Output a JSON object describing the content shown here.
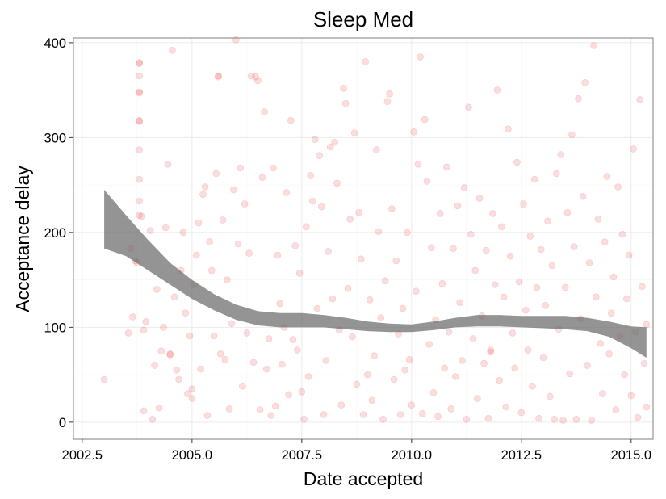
{
  "chart_data": {
    "type": "scatter",
    "title": "Sleep Med",
    "xlabel": "Date accepted",
    "ylabel": "Acceptance delay",
    "xlim": [
      2002.3,
      2015.5
    ],
    "ylim": [
      -18,
      405
    ],
    "x_ticks": [
      2002.5,
      2005.0,
      2007.5,
      2010.0,
      2012.5,
      2015.0
    ],
    "x_tick_labels": [
      "2002.5",
      "2005.0",
      "2007.5",
      "2010.0",
      "2012.5",
      "2015.0"
    ],
    "y_ticks": [
      0,
      100,
      200,
      300,
      400
    ],
    "y_tick_labels": [
      "0",
      "100",
      "200",
      "300",
      "400"
    ],
    "grid": true,
    "point_color": "#e41a1c",
    "point_alpha": 0.15,
    "smooth_band_color": "#666666",
    "smooth_band_alpha": 0.7,
    "smooth": {
      "x": [
        2003.0,
        2003.5,
        2004.0,
        2004.5,
        2005.0,
        2005.5,
        2006.0,
        2006.5,
        2007.0,
        2007.5,
        2008.0,
        2008.5,
        2009.0,
        2009.5,
        2010.0,
        2010.5,
        2011.0,
        2011.5,
        2012.0,
        2012.5,
        2013.0,
        2013.5,
        2014.0,
        2014.5,
        2015.0,
        2015.35
      ],
      "lower": [
        183,
        175,
        160,
        145,
        130,
        118,
        108,
        102,
        100,
        100,
        100,
        98,
        96,
        95,
        95,
        97,
        100,
        101,
        101,
        100,
        99,
        98,
        96,
        90,
        78,
        68
      ],
      "upper": [
        245,
        218,
        192,
        168,
        150,
        135,
        124,
        117,
        115,
        115,
        113,
        110,
        106,
        104,
        103,
        106,
        110,
        113,
        113,
        112,
        112,
        112,
        110,
        106,
        101,
        100
      ]
    },
    "points": [
      [
        2003.0,
        45
      ],
      [
        2003.55,
        94
      ],
      [
        2003.6,
        183
      ],
      [
        2003.65,
        111
      ],
      [
        2003.7,
        170
      ],
      [
        2003.75,
        168
      ],
      [
        2003.8,
        378
      ],
      [
        2003.8,
        379
      ],
      [
        2003.8,
        365
      ],
      [
        2003.8,
        348
      ],
      [
        2003.8,
        347
      ],
      [
        2003.8,
        318
      ],
      [
        2003.8,
        317
      ],
      [
        2003.8,
        287
      ],
      [
        2003.8,
        256
      ],
      [
        2003.8,
        233
      ],
      [
        2003.8,
        218
      ],
      [
        2003.85,
        217
      ],
      [
        2003.9,
        12
      ],
      [
        2003.9,
        97
      ],
      [
        2003.95,
        106
      ],
      [
        2004.05,
        202
      ],
      [
        2004.1,
        3
      ],
      [
        2004.15,
        60
      ],
      [
        2004.2,
        140
      ],
      [
        2004.25,
        15
      ],
      [
        2004.3,
        75
      ],
      [
        2004.35,
        100
      ],
      [
        2004.4,
        205
      ],
      [
        2004.45,
        272
      ],
      [
        2004.5,
        71
      ],
      [
        2004.5,
        72
      ],
      [
        2004.55,
        392
      ],
      [
        2004.6,
        132
      ],
      [
        2004.65,
        55
      ],
      [
        2004.7,
        45
      ],
      [
        2004.75,
        160
      ],
      [
        2004.8,
        200
      ],
      [
        2004.85,
        115
      ],
      [
        2004.9,
        30
      ],
      [
        2004.95,
        91
      ],
      [
        2005.0,
        25
      ],
      [
        2005.0,
        35
      ],
      [
        2005.05,
        145
      ],
      [
        2005.1,
        176
      ],
      [
        2005.15,
        210
      ],
      [
        2005.2,
        56
      ],
      [
        2005.25,
        240
      ],
      [
        2005.3,
        248
      ],
      [
        2005.35,
        7
      ],
      [
        2005.4,
        190
      ],
      [
        2005.45,
        160
      ],
      [
        2005.5,
        91
      ],
      [
        2005.55,
        262
      ],
      [
        2005.6,
        364
      ],
      [
        2005.6,
        365
      ],
      [
        2005.65,
        72
      ],
      [
        2005.7,
        213
      ],
      [
        2005.75,
        66
      ],
      [
        2005.8,
        150
      ],
      [
        2005.85,
        14
      ],
      [
        2005.9,
        104
      ],
      [
        2005.95,
        245
      ],
      [
        2006.0,
        403
      ],
      [
        2006.05,
        188
      ],
      [
        2006.1,
        268
      ],
      [
        2006.15,
        38
      ],
      [
        2006.2,
        230
      ],
      [
        2006.25,
        94
      ],
      [
        2006.3,
        178
      ],
      [
        2006.35,
        365
      ],
      [
        2006.4,
        63
      ],
      [
        2006.45,
        364
      ],
      [
        2006.5,
        360
      ],
      [
        2006.55,
        13
      ],
      [
        2006.6,
        258
      ],
      [
        2006.65,
        327
      ],
      [
        2006.7,
        56
      ],
      [
        2006.75,
        88
      ],
      [
        2006.8,
        7
      ],
      [
        2006.85,
        268
      ],
      [
        2006.9,
        17
      ],
      [
        2006.95,
        176
      ],
      [
        2007.0,
        125
      ],
      [
        2007.05,
        61
      ],
      [
        2007.1,
        100
      ],
      [
        2007.15,
        242
      ],
      [
        2007.2,
        29
      ],
      [
        2007.25,
        318
      ],
      [
        2007.3,
        87
      ],
      [
        2007.35,
        186
      ],
      [
        2007.4,
        76
      ],
      [
        2007.45,
        157
      ],
      [
        2007.5,
        32
      ],
      [
        2007.55,
        3
      ],
      [
        2007.6,
        206
      ],
      [
        2007.65,
        48
      ],
      [
        2007.7,
        260
      ],
      [
        2007.75,
        233
      ],
      [
        2007.8,
        298
      ],
      [
        2007.85,
        120
      ],
      [
        2007.9,
        281
      ],
      [
        2007.95,
        227
      ],
      [
        2008.0,
        8
      ],
      [
        2008.05,
        65
      ],
      [
        2008.1,
        180
      ],
      [
        2008.15,
        290
      ],
      [
        2008.2,
        130
      ],
      [
        2008.25,
        295
      ],
      [
        2008.3,
        252
      ],
      [
        2008.35,
        97
      ],
      [
        2008.4,
        18
      ],
      [
        2008.45,
        352
      ],
      [
        2008.5,
        336
      ],
      [
        2008.55,
        141
      ],
      [
        2008.6,
        214
      ],
      [
        2008.65,
        90
      ],
      [
        2008.7,
        305
      ],
      [
        2008.75,
        40
      ],
      [
        2008.8,
        221
      ],
      [
        2008.85,
        172
      ],
      [
        2008.9,
        8
      ],
      [
        2008.95,
        380
      ],
      [
        2009.0,
        50
      ],
      [
        2009.05,
        129
      ],
      [
        2009.1,
        23
      ],
      [
        2009.15,
        70
      ],
      [
        2009.2,
        287
      ],
      [
        2009.25,
        201
      ],
      [
        2009.3,
        110
      ],
      [
        2009.35,
        3
      ],
      [
        2009.4,
        149
      ],
      [
        2009.45,
        338
      ],
      [
        2009.5,
        346
      ],
      [
        2009.55,
        225
      ],
      [
        2009.6,
        45
      ],
      [
        2009.65,
        170
      ],
      [
        2009.7,
        93
      ],
      [
        2009.75,
        8
      ],
      [
        2009.8,
        120
      ],
      [
        2009.85,
        55
      ],
      [
        2009.9,
        200
      ],
      [
        2009.95,
        66
      ],
      [
        2010.0,
        18
      ],
      [
        2010.05,
        306
      ],
      [
        2010.1,
        138
      ],
      [
        2010.15,
        272
      ],
      [
        2010.2,
        385
      ],
      [
        2010.25,
        9
      ],
      [
        2010.3,
        319
      ],
      [
        2010.35,
        254
      ],
      [
        2010.4,
        82
      ],
      [
        2010.45,
        184
      ],
      [
        2010.5,
        31
      ],
      [
        2010.55,
        108
      ],
      [
        2010.6,
        6
      ],
      [
        2010.65,
        220
      ],
      [
        2010.7,
        146
      ],
      [
        2010.75,
        57
      ],
      [
        2010.8,
        269
      ],
      [
        2010.85,
        95
      ],
      [
        2010.9,
        14
      ],
      [
        2010.95,
        183
      ],
      [
        2011.0,
        48
      ],
      [
        2011.05,
        228
      ],
      [
        2011.1,
        126
      ],
      [
        2011.15,
        65
      ],
      [
        2011.2,
        247
      ],
      [
        2011.25,
        3
      ],
      [
        2011.3,
        332
      ],
      [
        2011.35,
        198
      ],
      [
        2011.4,
        88
      ],
      [
        2011.45,
        160
      ],
      [
        2011.5,
        25
      ],
      [
        2011.55,
        236
      ],
      [
        2011.6,
        112
      ],
      [
        2011.65,
        62
      ],
      [
        2011.7,
        181
      ],
      [
        2011.75,
        4
      ],
      [
        2011.8,
        76
      ],
      [
        2011.8,
        74
      ],
      [
        2011.85,
        220
      ],
      [
        2011.9,
        145
      ],
      [
        2011.95,
        350
      ],
      [
        2012.0,
        44
      ],
      [
        2012.05,
        206
      ],
      [
        2012.1,
        132
      ],
      [
        2012.15,
        16
      ],
      [
        2012.2,
        309
      ],
      [
        2012.25,
        175
      ],
      [
        2012.3,
        94
      ],
      [
        2012.35,
        57
      ],
      [
        2012.4,
        274
      ],
      [
        2012.45,
        148
      ],
      [
        2012.5,
        10
      ],
      [
        2012.55,
        230
      ],
      [
        2012.6,
        118
      ],
      [
        2012.65,
        76
      ],
      [
        2012.7,
        196
      ],
      [
        2012.75,
        38
      ],
      [
        2012.8,
        256
      ],
      [
        2012.85,
        142
      ],
      [
        2012.9,
        4
      ],
      [
        2012.95,
        182
      ],
      [
        2013.0,
        68
      ],
      [
        2013.05,
        123
      ],
      [
        2013.1,
        212
      ],
      [
        2013.15,
        27
      ],
      [
        2013.2,
        165
      ],
      [
        2013.25,
        3
      ],
      [
        2013.3,
        262
      ],
      [
        2013.35,
        98
      ],
      [
        2013.4,
        282
      ],
      [
        2013.45,
        2
      ],
      [
        2013.5,
        142
      ],
      [
        2013.55,
        221
      ],
      [
        2013.6,
        51
      ],
      [
        2013.65,
        303
      ],
      [
        2013.7,
        185
      ],
      [
        2013.75,
        3
      ],
      [
        2013.8,
        341
      ],
      [
        2013.85,
        109
      ],
      [
        2013.9,
        238
      ],
      [
        2013.95,
        358
      ],
      [
        2014.0,
        60
      ],
      [
        2014.05,
        168
      ],
      [
        2014.1,
        2
      ],
      [
        2014.15,
        397
      ],
      [
        2014.2,
        132
      ],
      [
        2014.25,
        214
      ],
      [
        2014.3,
        83
      ],
      [
        2014.35,
        30
      ],
      [
        2014.4,
        190
      ],
      [
        2014.45,
        259
      ],
      [
        2014.5,
        72
      ],
      [
        2014.55,
        115
      ],
      [
        2014.6,
        153
      ],
      [
        2014.65,
        13
      ],
      [
        2014.7,
        248
      ],
      [
        2014.75,
        91
      ],
      [
        2014.8,
        198
      ],
      [
        2014.85,
        50
      ],
      [
        2014.9,
        130
      ],
      [
        2014.95,
        176
      ],
      [
        2015.0,
        28
      ],
      [
        2015.05,
        288
      ],
      [
        2015.1,
        95
      ],
      [
        2015.15,
        5
      ],
      [
        2015.2,
        340
      ],
      [
        2015.25,
        143
      ],
      [
        2015.3,
        62
      ],
      [
        2015.35,
        16
      ],
      [
        2015.35,
        103
      ]
    ]
  }
}
